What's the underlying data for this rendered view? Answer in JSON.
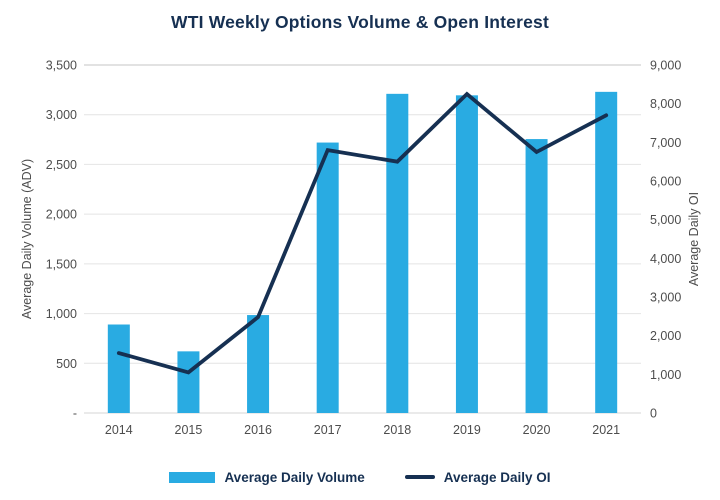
{
  "colors": {
    "bar": "#29ABE2",
    "line": "#163052",
    "navy": "#163052",
    "tick_text": "#4D4D4D",
    "grid": "#E4E4E4",
    "grid_top": "#C4C4C4",
    "axis_line": "#D6D6D6"
  },
  "chart_data": {
    "type": "bar",
    "subtype": "combo-bar-line",
    "title": "WTI Weekly Options Volume & Open Interest",
    "categories": [
      "2014",
      "2015",
      "2016",
      "2017",
      "2018",
      "2019",
      "2020",
      "2021"
    ],
    "series": [
      {
        "name": "Average Daily Volume",
        "type": "bar",
        "axis": "left",
        "values": [
          890,
          620,
          985,
          2720,
          3210,
          3195,
          2755,
          3230
        ]
      },
      {
        "name": "Average Daily OI",
        "type": "line",
        "axis": "right",
        "values": [
          1550,
          1050,
          2480,
          6800,
          6500,
          8250,
          6750,
          7700
        ]
      }
    ],
    "y_left": {
      "label": "Average Daily Volume (ADV)",
      "min": 0,
      "max": 3500,
      "step": 500,
      "tick_labels": [
        "-",
        "500",
        "1,000",
        "1,500",
        "2,000",
        "2,500",
        "3,000",
        "3,500"
      ]
    },
    "y_right": {
      "label": "Average Daily OI",
      "min": 0,
      "max": 9000,
      "step": 1000,
      "tick_labels": [
        "0",
        "1,000",
        "2,000",
        "3,000",
        "4,000",
        "5,000",
        "6,000",
        "7,000",
        "8,000",
        "9,000"
      ]
    },
    "grid": "horizontal",
    "legend_position": "bottom",
    "legend": [
      {
        "label": "Average Daily Volume",
        "swatch": "bar"
      },
      {
        "label": "Average Daily OI",
        "swatch": "line"
      }
    ]
  }
}
